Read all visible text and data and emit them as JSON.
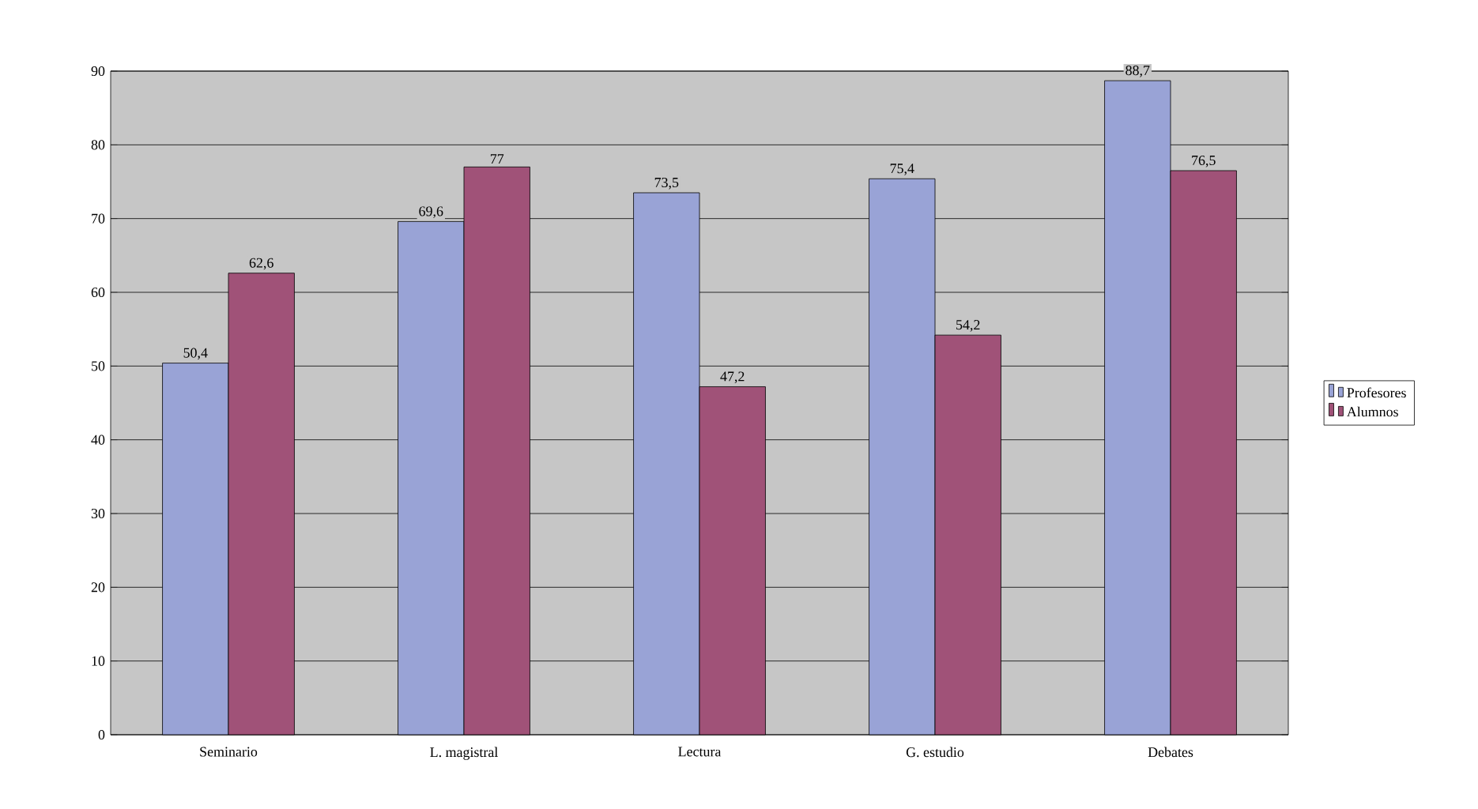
{
  "chart_data": {
    "type": "bar",
    "categories": [
      "Seminario",
      "L. magistral",
      "Lectura",
      "G. estudio",
      "Debates"
    ],
    "series": [
      {
        "name": "Profesores",
        "color": "#99a3d6",
        "values": [
          50.4,
          69.6,
          73.5,
          75.4,
          88.7
        ],
        "value_labels": [
          "50,4",
          "69,6",
          "73,5",
          "75,4",
          "88,7"
        ]
      },
      {
        "name": "Alumnos",
        "color": "#a05278",
        "values": [
          62.6,
          77,
          47.2,
          54.2,
          76.5
        ],
        "value_labels": [
          "62,6",
          "77",
          "47,2",
          "54,2",
          "76,5"
        ]
      }
    ],
    "ylim": [
      0,
      90
    ],
    "yticks": [
      0,
      10,
      20,
      30,
      40,
      50,
      60,
      70,
      80,
      90
    ],
    "grid": "y",
    "legend": "right"
  }
}
